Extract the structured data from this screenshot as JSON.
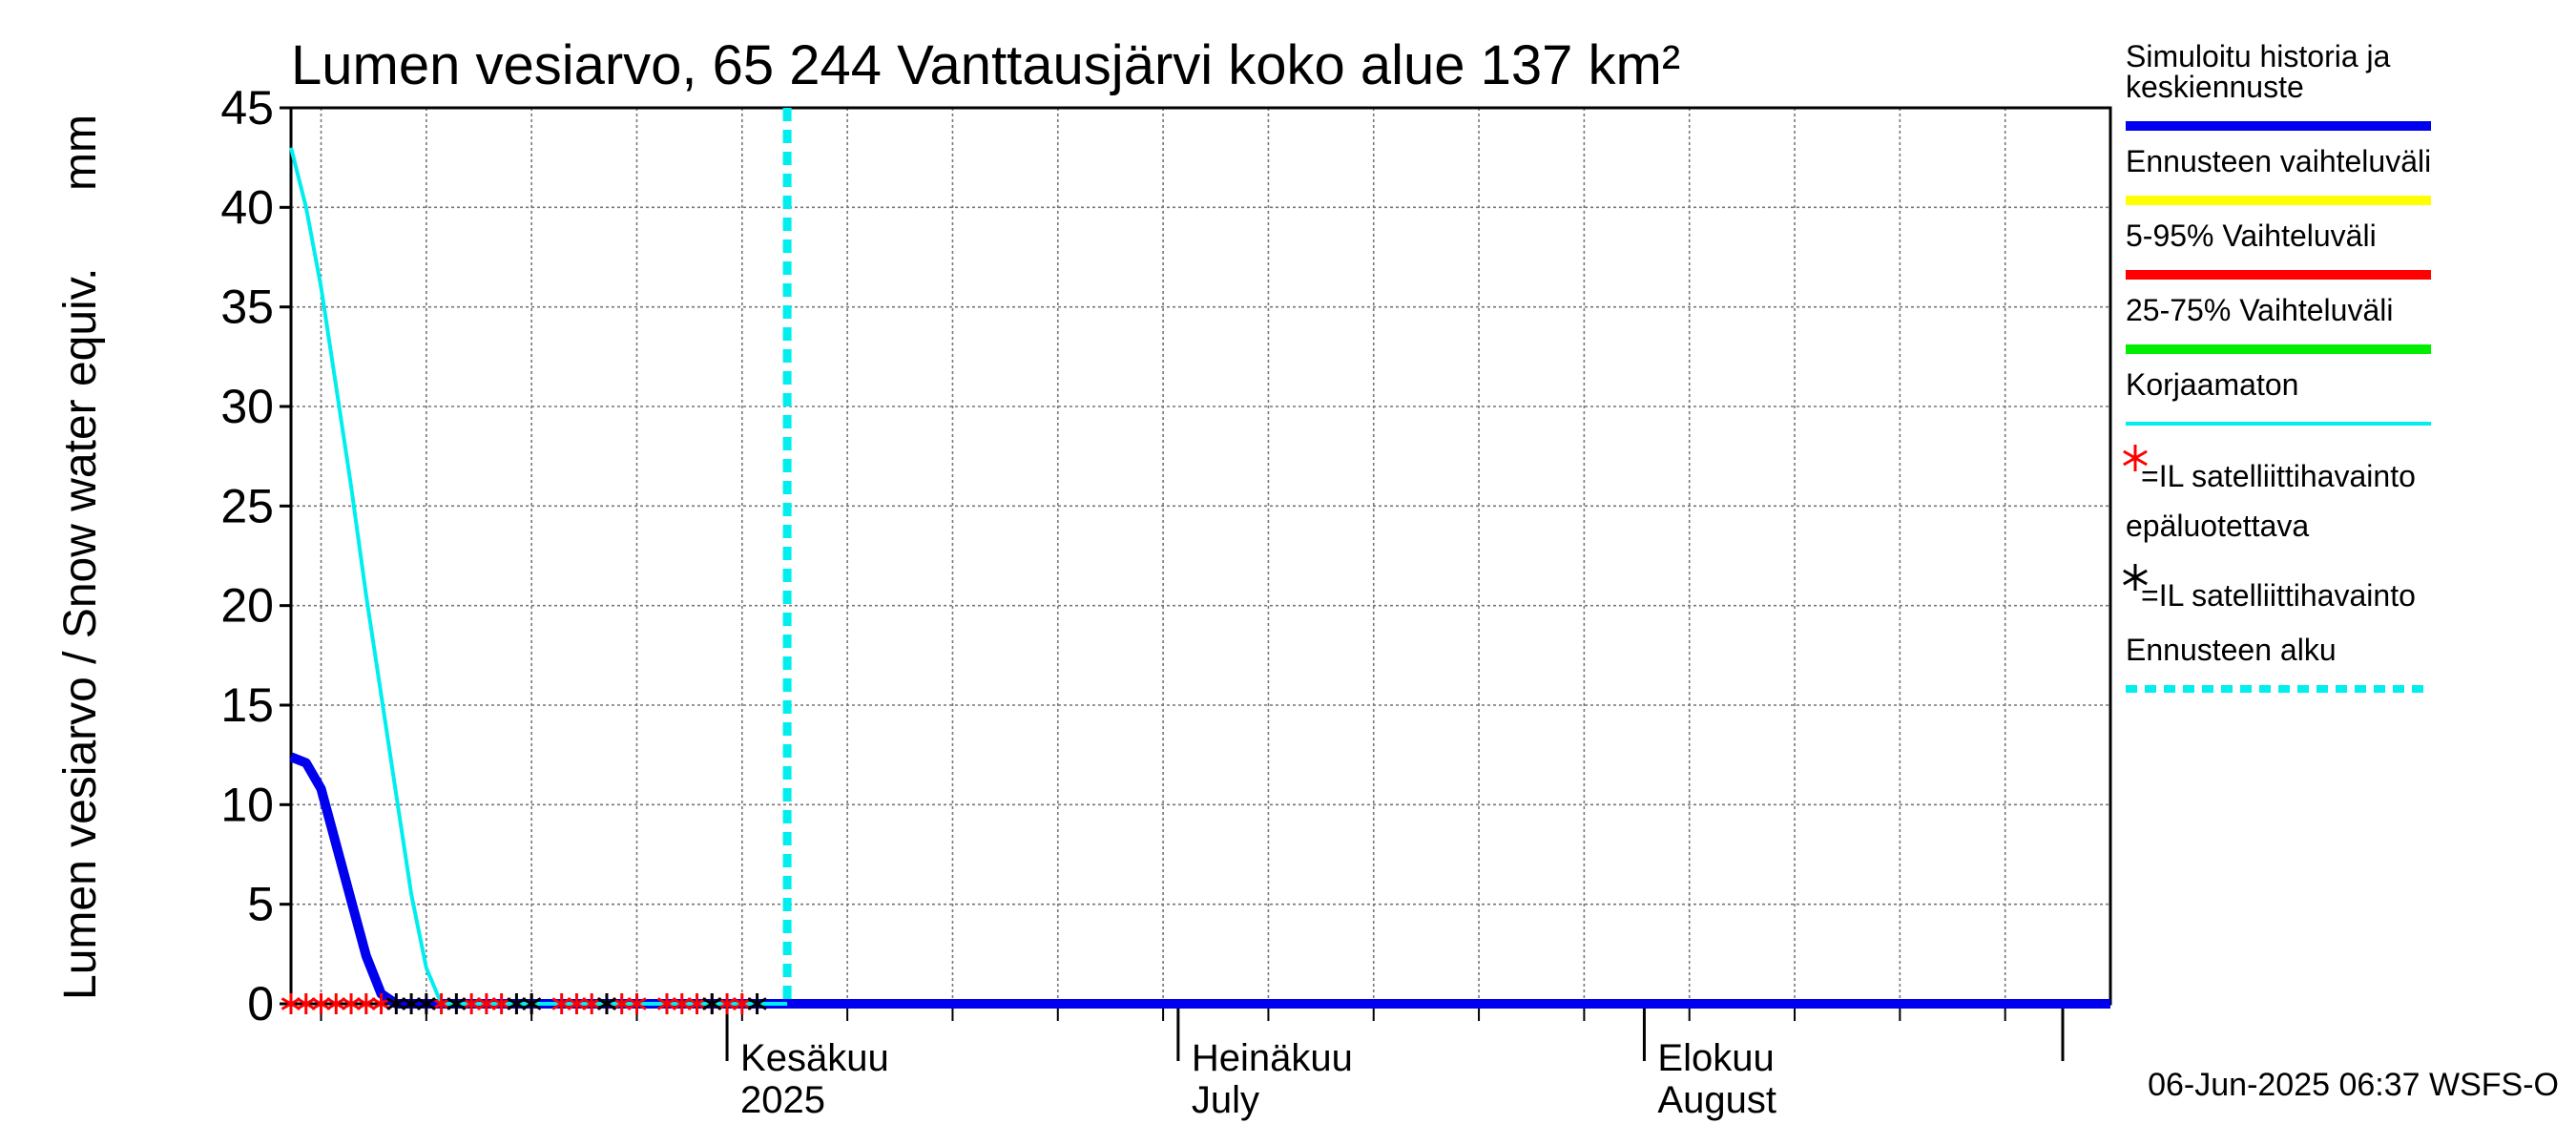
{
  "chart_data": {
    "type": "line",
    "title": "Lumen vesiarvo, 65 244 Vanttausjärvi koko alue 137 km²",
    "ylabel": "Lumen vesiarvo / Snow water equiv.",
    "yunit": "mm",
    "ylim": [
      0,
      45
    ],
    "y_ticks": [
      0,
      5,
      10,
      15,
      20,
      25,
      30,
      35,
      40,
      45
    ],
    "xlim": [
      "2025-05-03",
      "2025-09-01"
    ],
    "grid": true,
    "legend_position": "right",
    "x_month_labels": [
      {
        "date": "2025-06-01",
        "line1": "Kesäkuu",
        "line2": "2025"
      },
      {
        "date": "2025-07-01",
        "line1": "Heinäkuu",
        "line2": "July"
      },
      {
        "date": "2025-08-01",
        "line1": "Elokuu",
        "line2": "August"
      }
    ],
    "series": [
      {
        "name": "Simuloitu historia ja keskiennuste",
        "color": "#0000ee",
        "x": [
          "2025-05-03",
          "2025-05-04",
          "2025-05-05",
          "2025-05-06",
          "2025-05-07",
          "2025-05-08",
          "2025-05-09",
          "2025-05-10",
          "2025-05-11",
          "2025-05-15",
          "2025-05-20",
          "2025-05-25",
          "2025-05-31",
          "2025-06-05",
          "2025-06-10",
          "2025-06-20",
          "2025-07-01",
          "2025-07-15",
          "2025-08-01",
          "2025-08-15",
          "2025-09-01"
        ],
        "y": [
          12.4,
          12.1,
          10.8,
          8.0,
          5.2,
          2.4,
          0.5,
          0.0,
          0.0,
          0.0,
          0.0,
          0.0,
          0.0,
          0.0,
          0.0,
          0.0,
          0.0,
          0.0,
          0.0,
          0.0,
          0.0
        ]
      },
      {
        "name": "Korjaamaton",
        "color": "#00eeee",
        "x": [
          "2025-05-03",
          "2025-05-04",
          "2025-05-05",
          "2025-05-06",
          "2025-05-07",
          "2025-05-08",
          "2025-05-09",
          "2025-05-10",
          "2025-05-11",
          "2025-05-12",
          "2025-05-13",
          "2025-05-14",
          "2025-05-20",
          "2025-05-31",
          "2025-06-05"
        ],
        "y": [
          43.0,
          40.0,
          36.0,
          31.0,
          26.0,
          20.5,
          15.5,
          10.5,
          5.5,
          1.8,
          0.0,
          0.0,
          0.0,
          0.0,
          0.0
        ]
      }
    ],
    "forecast_start": "2025-06-05",
    "satellite_obs_unreliable": [
      "2025-05-03",
      "2025-05-04",
      "2025-05-05",
      "2025-05-06",
      "2025-05-07",
      "2025-05-08",
      "2025-05-09",
      "2025-05-13",
      "2025-05-15",
      "2025-05-16",
      "2025-05-17",
      "2025-05-19",
      "2025-05-21",
      "2025-05-22",
      "2025-05-23",
      "2025-05-24",
      "2025-05-25",
      "2025-05-26",
      "2025-05-28",
      "2025-05-29",
      "2025-05-30",
      "2025-05-31",
      "2025-06-01",
      "2025-06-02"
    ],
    "satellite_obs": [
      "2025-05-10",
      "2025-05-11",
      "2025-05-12",
      "2025-05-14",
      "2025-05-18",
      "2025-05-19",
      "2025-05-24",
      "2025-05-31",
      "2025-06-03"
    ],
    "legend": [
      {
        "key": "sim",
        "label": [
          "Simuloitu historia ja",
          "keskiennuste"
        ],
        "color": "#0000ee",
        "style": "line"
      },
      {
        "key": "range",
        "label": [
          "Ennusteen vaihteluväli"
        ],
        "color": "#ffff00",
        "style": "line"
      },
      {
        "key": "p5_95",
        "label": [
          "5-95% Vaihteluväli"
        ],
        "color": "#ff0000",
        "style": "line"
      },
      {
        "key": "p25_75",
        "label": [
          "25-75% Vaihteluväli"
        ],
        "color": "#00ee00",
        "style": "line"
      },
      {
        "key": "raw",
        "label": [
          "Korjaamaton"
        ],
        "color": "#00eeee",
        "style": "line"
      },
      {
        "key": "sat_unrel",
        "label": [
          "=IL satelliittihavainto",
          "epäluotettava"
        ],
        "color": "#ff0000",
        "style": "star"
      },
      {
        "key": "sat",
        "label": [
          "=IL satelliittihavainto"
        ],
        "color": "#000000",
        "style": "star"
      },
      {
        "key": "fstart",
        "label": [
          "Ennusteen alku"
        ],
        "color": "#00eeee",
        "style": "dash"
      }
    ]
  },
  "timestamp": "06-Jun-2025 06:37 WSFS-O"
}
